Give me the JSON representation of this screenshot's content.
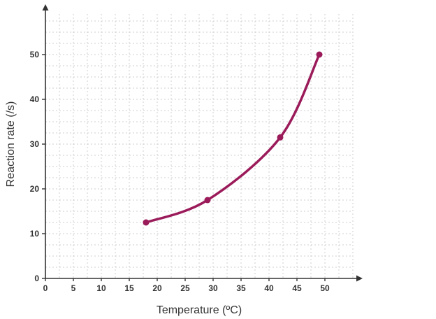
{
  "chart_data": {
    "type": "line",
    "title": "",
    "xlabel": "Temperature (ºC)",
    "ylabel": "Reaction rate (/s)",
    "xlim": [
      0,
      55
    ],
    "ylim": [
      0,
      60
    ],
    "x_ticks": [
      0,
      5,
      10,
      15,
      20,
      25,
      30,
      35,
      40,
      45,
      50
    ],
    "y_ticks": [
      0,
      10,
      20,
      30,
      40,
      50
    ],
    "grid": true,
    "smooth": true,
    "series": [
      {
        "color": "#9b1b5a",
        "points": [
          {
            "x": 18,
            "y": 12.5
          },
          {
            "x": 29,
            "y": 17.5
          },
          {
            "x": 42,
            "y": 31.5
          },
          {
            "x": 49,
            "y": 50
          }
        ]
      }
    ]
  }
}
